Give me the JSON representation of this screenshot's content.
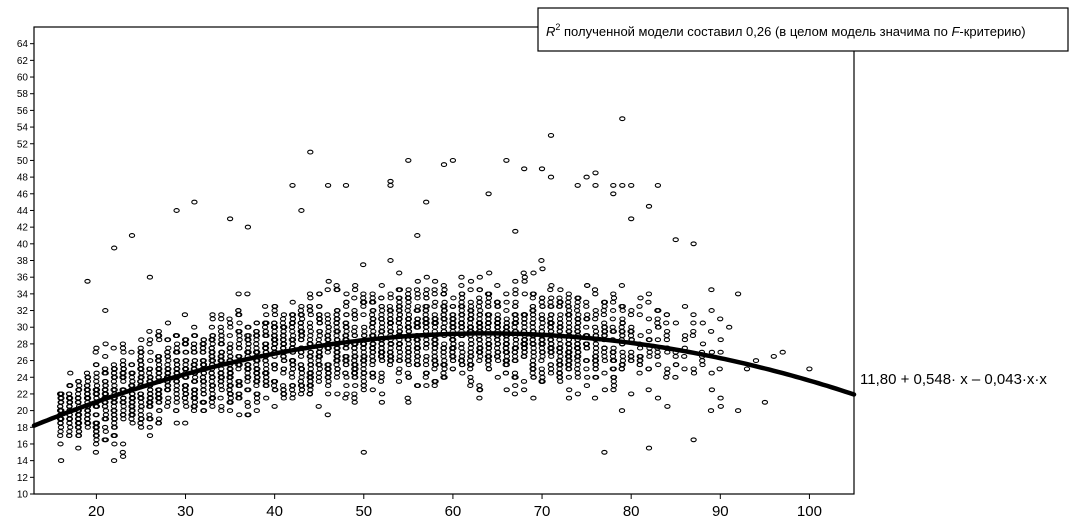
{
  "chart_data": {
    "type": "scatter",
    "title": "",
    "xlabel": "",
    "ylabel": "",
    "xlim": [
      13,
      105
    ],
    "ylim": [
      10,
      66
    ],
    "x_ticks": [
      20,
      30,
      40,
      50,
      60,
      70,
      80,
      90,
      100
    ],
    "y_ticks": [
      10,
      12,
      14,
      16,
      18,
      20,
      22,
      24,
      26,
      28,
      30,
      32,
      34,
      36,
      38,
      40,
      42,
      44,
      46,
      48,
      50,
      52,
      54,
      56,
      58,
      60,
      62,
      64
    ],
    "grid": false,
    "annotation": {
      "r_prefix": "R",
      "r_sup": "2",
      "text_before_f": " полученной модели составил 0,26 (в целом модель значима по ",
      "f_letter": "F",
      "text_after_f": "-критерию)"
    },
    "fit_curve": {
      "label": "11,80 + 0,548· x – 0,043·x·x",
      "intercept": 11.8,
      "linear": 0.548,
      "quadratic": -0.043
    },
    "outliers": [
      {
        "x": 79,
        "y": 55
      },
      {
        "x": 71,
        "y": 53
      },
      {
        "x": 44,
        "y": 51
      },
      {
        "x": 60,
        "y": 50
      },
      {
        "x": 55,
        "y": 50
      },
      {
        "x": 66,
        "y": 50
      },
      {
        "x": 59,
        "y": 49.5
      },
      {
        "x": 68,
        "y": 49
      },
      {
        "x": 70,
        "y": 49
      },
      {
        "x": 53,
        "y": 47.5
      },
      {
        "x": 42,
        "y": 47
      },
      {
        "x": 46,
        "y": 47
      },
      {
        "x": 48,
        "y": 47
      },
      {
        "x": 53,
        "y": 47
      },
      {
        "x": 74,
        "y": 47
      },
      {
        "x": 75,
        "y": 48
      },
      {
        "x": 76,
        "y": 47
      },
      {
        "x": 78,
        "y": 47
      },
      {
        "x": 79,
        "y": 47
      },
      {
        "x": 80,
        "y": 47
      },
      {
        "x": 83,
        "y": 47
      },
      {
        "x": 76,
        "y": 48.5
      },
      {
        "x": 71,
        "y": 48
      },
      {
        "x": 31,
        "y": 45
      },
      {
        "x": 29,
        "y": 44
      },
      {
        "x": 43,
        "y": 44
      },
      {
        "x": 64,
        "y": 46
      },
      {
        "x": 78,
        "y": 46
      },
      {
        "x": 82,
        "y": 44.5
      },
      {
        "x": 57,
        "y": 45
      },
      {
        "x": 80,
        "y": 43
      },
      {
        "x": 24,
        "y": 41
      },
      {
        "x": 22,
        "y": 39.5
      },
      {
        "x": 87,
        "y": 40
      },
      {
        "x": 85,
        "y": 40.5
      },
      {
        "x": 92,
        "y": 34
      },
      {
        "x": 93,
        "y": 25
      },
      {
        "x": 92,
        "y": 20
      },
      {
        "x": 95,
        "y": 21
      },
      {
        "x": 94,
        "y": 26
      },
      {
        "x": 97,
        "y": 27
      },
      {
        "x": 96,
        "y": 26.5
      },
      {
        "x": 100,
        "y": 25
      },
      {
        "x": 23,
        "y": 14.5
      },
      {
        "x": 50,
        "y": 15
      },
      {
        "x": 77,
        "y": 15
      },
      {
        "x": 82,
        "y": 15.5
      },
      {
        "x": 87,
        "y": 16.5
      },
      {
        "x": 89,
        "y": 34.5
      },
      {
        "x": 91,
        "y": 30
      },
      {
        "x": 21,
        "y": 32
      },
      {
        "x": 19,
        "y": 35.5
      },
      {
        "x": 26,
        "y": 36
      },
      {
        "x": 37,
        "y": 42
      },
      {
        "x": 35,
        "y": 43
      },
      {
        "x": 56,
        "y": 41
      },
      {
        "x": 67,
        "y": 41.5
      }
    ]
  }
}
